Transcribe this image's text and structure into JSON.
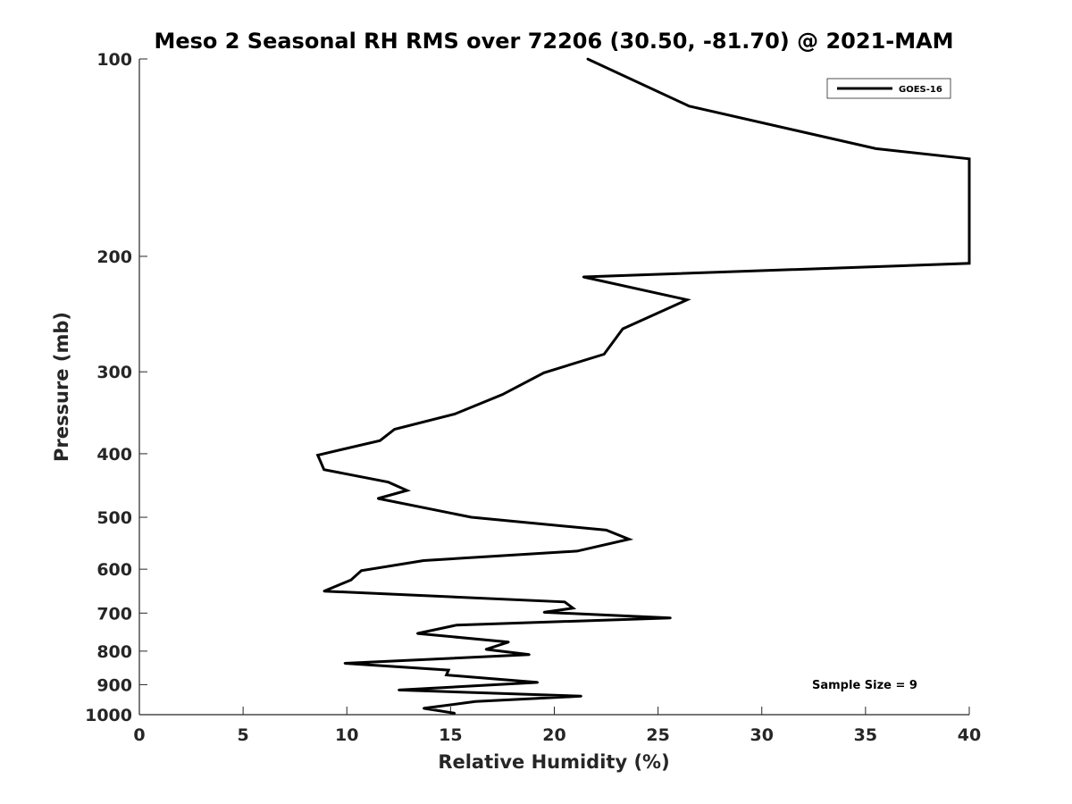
{
  "chart_data": {
    "type": "line",
    "title": "Meso 2 Seasonal RH RMS over 72206 (30.50, -81.70) @ 2021-MAM",
    "xlabel": "Relative Humidity (%)",
    "ylabel": "Pressure (mb)",
    "xlim": [
      0,
      40
    ],
    "ylim": [
      100,
      1000
    ],
    "y_scale": "log",
    "y_direction": "reversed",
    "xticks": [
      "0",
      "5",
      "10",
      "15",
      "20",
      "25",
      "30",
      "35",
      "40"
    ],
    "yticks": [
      "100",
      "200",
      "300",
      "400",
      "500",
      "600",
      "700",
      "800",
      "900",
      "1000"
    ],
    "grid": false,
    "legend_position": "top-right",
    "annotation": "Sample Size = 9",
    "series": [
      {
        "name": "GOES-16",
        "color": "#000000",
        "x": [
          21.6,
          26.5,
          35.5,
          40,
          40,
          21.4,
          26.4,
          23.3,
          22.4,
          19.5,
          17.5,
          15.2,
          12.3,
          11.6,
          8.6,
          8.9,
          12.0,
          12.9,
          11.5,
          16.0,
          22.5,
          23.6,
          21.1,
          13.7,
          10.7,
          10.2,
          8.9,
          20.5,
          20.9,
          19.5,
          25.6,
          15.3,
          13.4,
          17.8,
          16.7,
          18.8,
          9.9,
          14.9,
          14.8,
          19.2,
          12.5,
          21.3,
          16.2,
          13.7,
          15.2
        ],
        "y": [
          100,
          118,
          137,
          142,
          205,
          215,
          233,
          258,
          282,
          301,
          325,
          348,
          367,
          382,
          402,
          423,
          442,
          455,
          468,
          500,
          523,
          540,
          563,
          582,
          603,
          623,
          648,
          673,
          688,
          698,
          712,
          730,
          752,
          775,
          795,
          810,
          835,
          855,
          870,
          893,
          917,
          937,
          955,
          978,
          995
        ]
      }
    ]
  }
}
